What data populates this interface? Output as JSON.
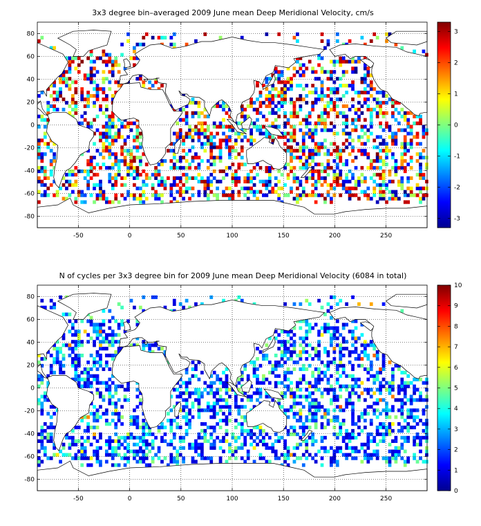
{
  "chart_data": [
    {
      "type": "heatmap",
      "title": "3x3 degree bin–averaged 2009 June mean Deep Meridional Velocity, cm/s",
      "xlim": [
        -90,
        290
      ],
      "ylim": [
        -90,
        90
      ],
      "x_ticks": [
        -50,
        0,
        50,
        100,
        150,
        200,
        250
      ],
      "y_ticks": [
        80,
        60,
        40,
        20,
        0,
        -20,
        -40,
        -60,
        -80
      ],
      "grid": true,
      "colorbar": {
        "range": [
          -3.3,
          3.3
        ],
        "ticks": [
          3,
          2,
          1,
          0,
          -1,
          -2,
          -3
        ],
        "colormap": "jet"
      },
      "bin_size_deg": 3
    },
    {
      "type": "heatmap",
      "title": "N of cycles per 3x3 degree bin for 2009 June mean Deep Meridional Velocity (6084 in total)",
      "xlim": [
        -90,
        290
      ],
      "ylim": [
        -90,
        90
      ],
      "x_ticks": [
        -50,
        0,
        50,
        100,
        150,
        200,
        250
      ],
      "y_ticks": [
        80,
        60,
        40,
        20,
        0,
        -20,
        -40,
        -60,
        -80
      ],
      "grid": true,
      "colorbar": {
        "range": [
          0,
          10
        ],
        "ticks": [
          10,
          9,
          8,
          7,
          6,
          5,
          4,
          3,
          2,
          1,
          0
        ],
        "colormap": "jet"
      },
      "bin_size_deg": 3
    }
  ]
}
